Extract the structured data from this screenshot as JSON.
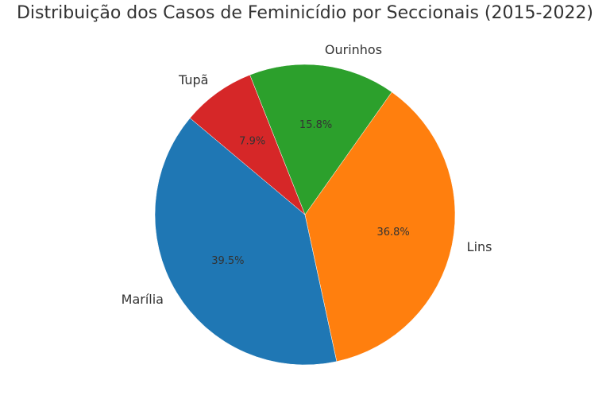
{
  "chart_data": {
    "type": "pie",
    "title": "Distribuição dos Casos de Feminicídio por Seccionais (2015-2022)",
    "start_angle_deg": 140,
    "direction": "counterclockwise",
    "slices": [
      {
        "label": "Marília",
        "percent": 39.5,
        "percent_label": "39.5%",
        "color": "#1f77b4"
      },
      {
        "label": "Lins",
        "percent": 36.8,
        "percent_label": "36.8%",
        "color": "#ff7f0e"
      },
      {
        "label": "Ourinhos",
        "percent": 15.8,
        "percent_label": "15.8%",
        "color": "#2ca02c"
      },
      {
        "label": "Tupã",
        "percent": 7.9,
        "percent_label": "7.9%",
        "color": "#d62728"
      }
    ]
  }
}
